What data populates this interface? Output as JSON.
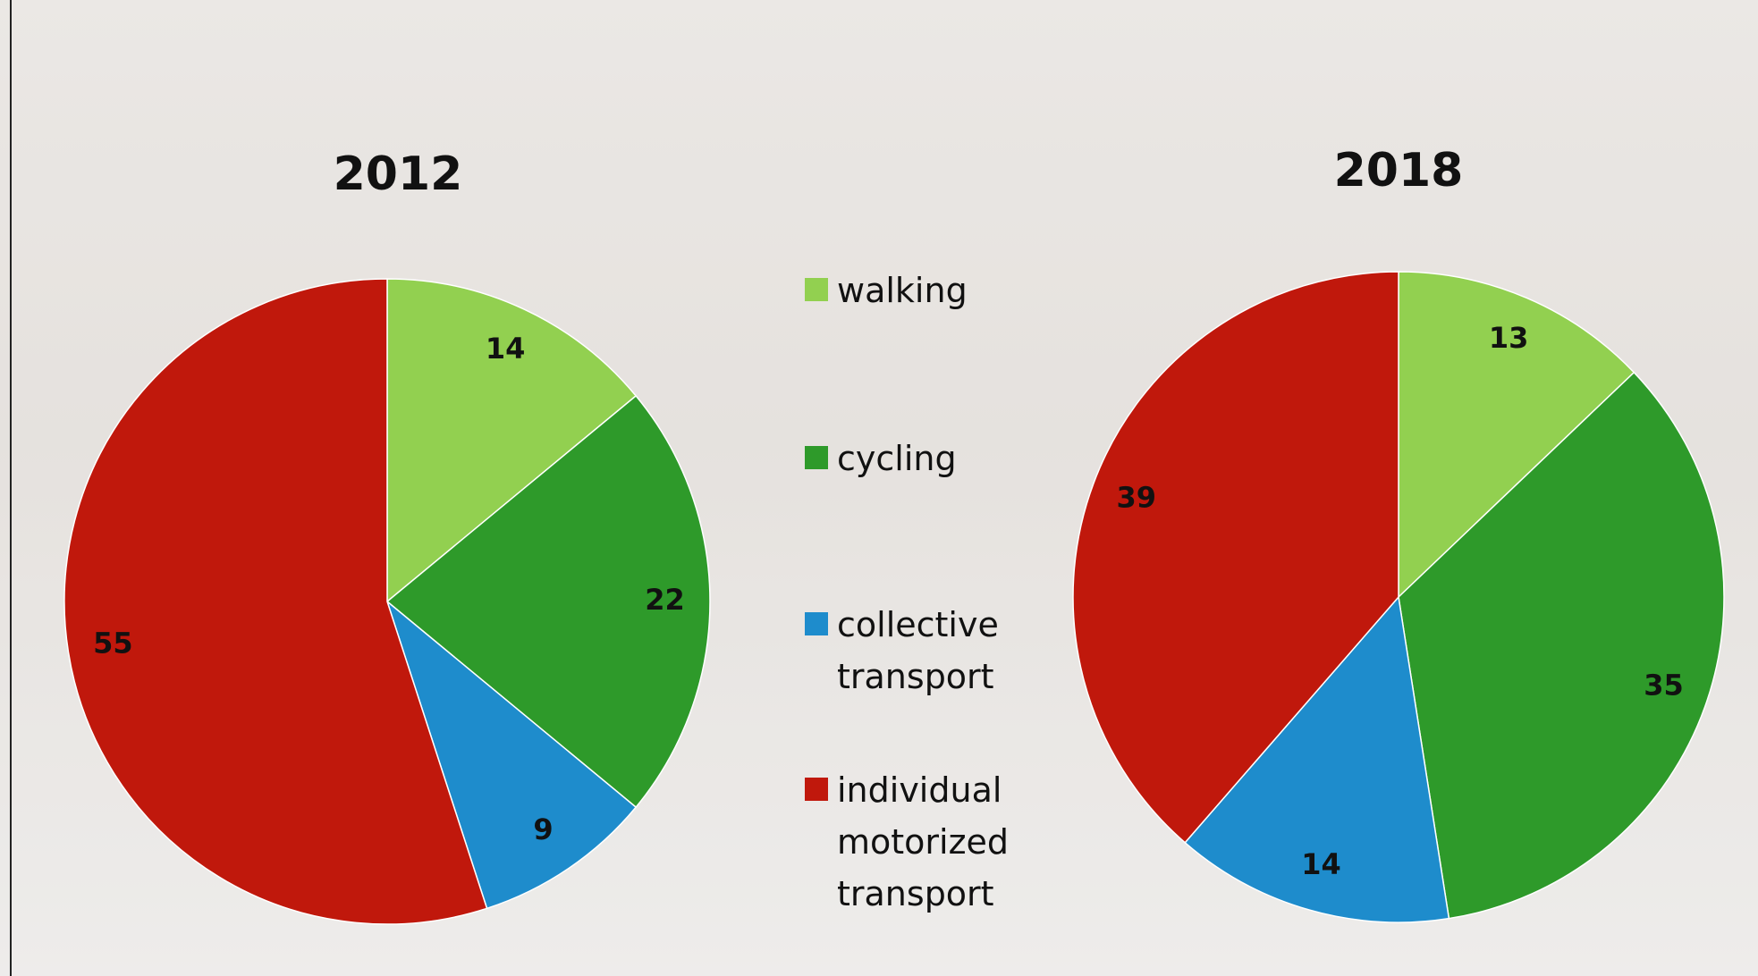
{
  "chart_data": [
    {
      "type": "pie",
      "title": "2012",
      "categories": [
        "walking",
        "cycling",
        "collective transport",
        "individual motorized transport"
      ],
      "colors": [
        "#92d050",
        "#2e9a2a",
        "#1e8ccc",
        "#c0180c"
      ],
      "values": [
        14,
        22,
        9,
        55
      ]
    },
    {
      "type": "pie",
      "title": "2018",
      "values": [
        13,
        35,
        14,
        39
      ]
    }
  ]
}
